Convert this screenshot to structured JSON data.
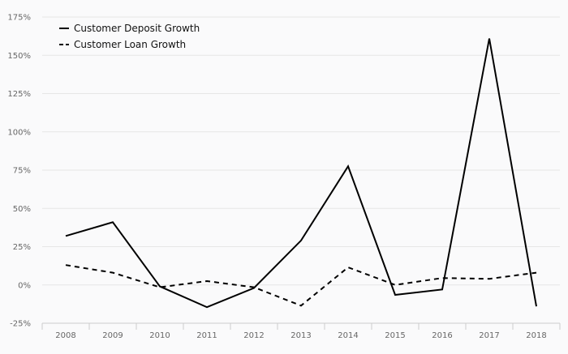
{
  "chart_data": {
    "type": "line",
    "title": "",
    "xlabel": "",
    "ylabel": "",
    "categories": [
      "2008",
      "2009",
      "2010",
      "2011",
      "2012",
      "2013",
      "2014",
      "2015",
      "2016",
      "2017",
      "2018"
    ],
    "series": [
      {
        "name": "Customer Deposit Growth",
        "style": "solid",
        "values": [
          32,
          41,
          -1,
          -14.5,
          -2,
          29,
          77.5,
          -6.5,
          -3,
          161,
          -14
        ]
      },
      {
        "name": "Customer Loan Growth",
        "style": "dashed",
        "values": [
          13,
          8,
          -1.5,
          2.5,
          -1.5,
          -13.5,
          11.5,
          0,
          4.5,
          4,
          8
        ]
      }
    ],
    "ylim": [
      -25,
      175
    ],
    "yticks": [
      175,
      150,
      125,
      100,
      75,
      50,
      25,
      0,
      -25
    ],
    "ytick_labels": [
      "175%",
      "150%",
      "125%",
      "100%",
      "75%",
      "50%",
      "25%",
      "0%",
      "-25%"
    ],
    "grid": true,
    "legend_position": "top-left",
    "colors": {
      "line": "#000000",
      "grid": "#e6e6e6",
      "background": "#fafafb",
      "tick_text": "#666666",
      "axis": "#cccccc"
    }
  }
}
